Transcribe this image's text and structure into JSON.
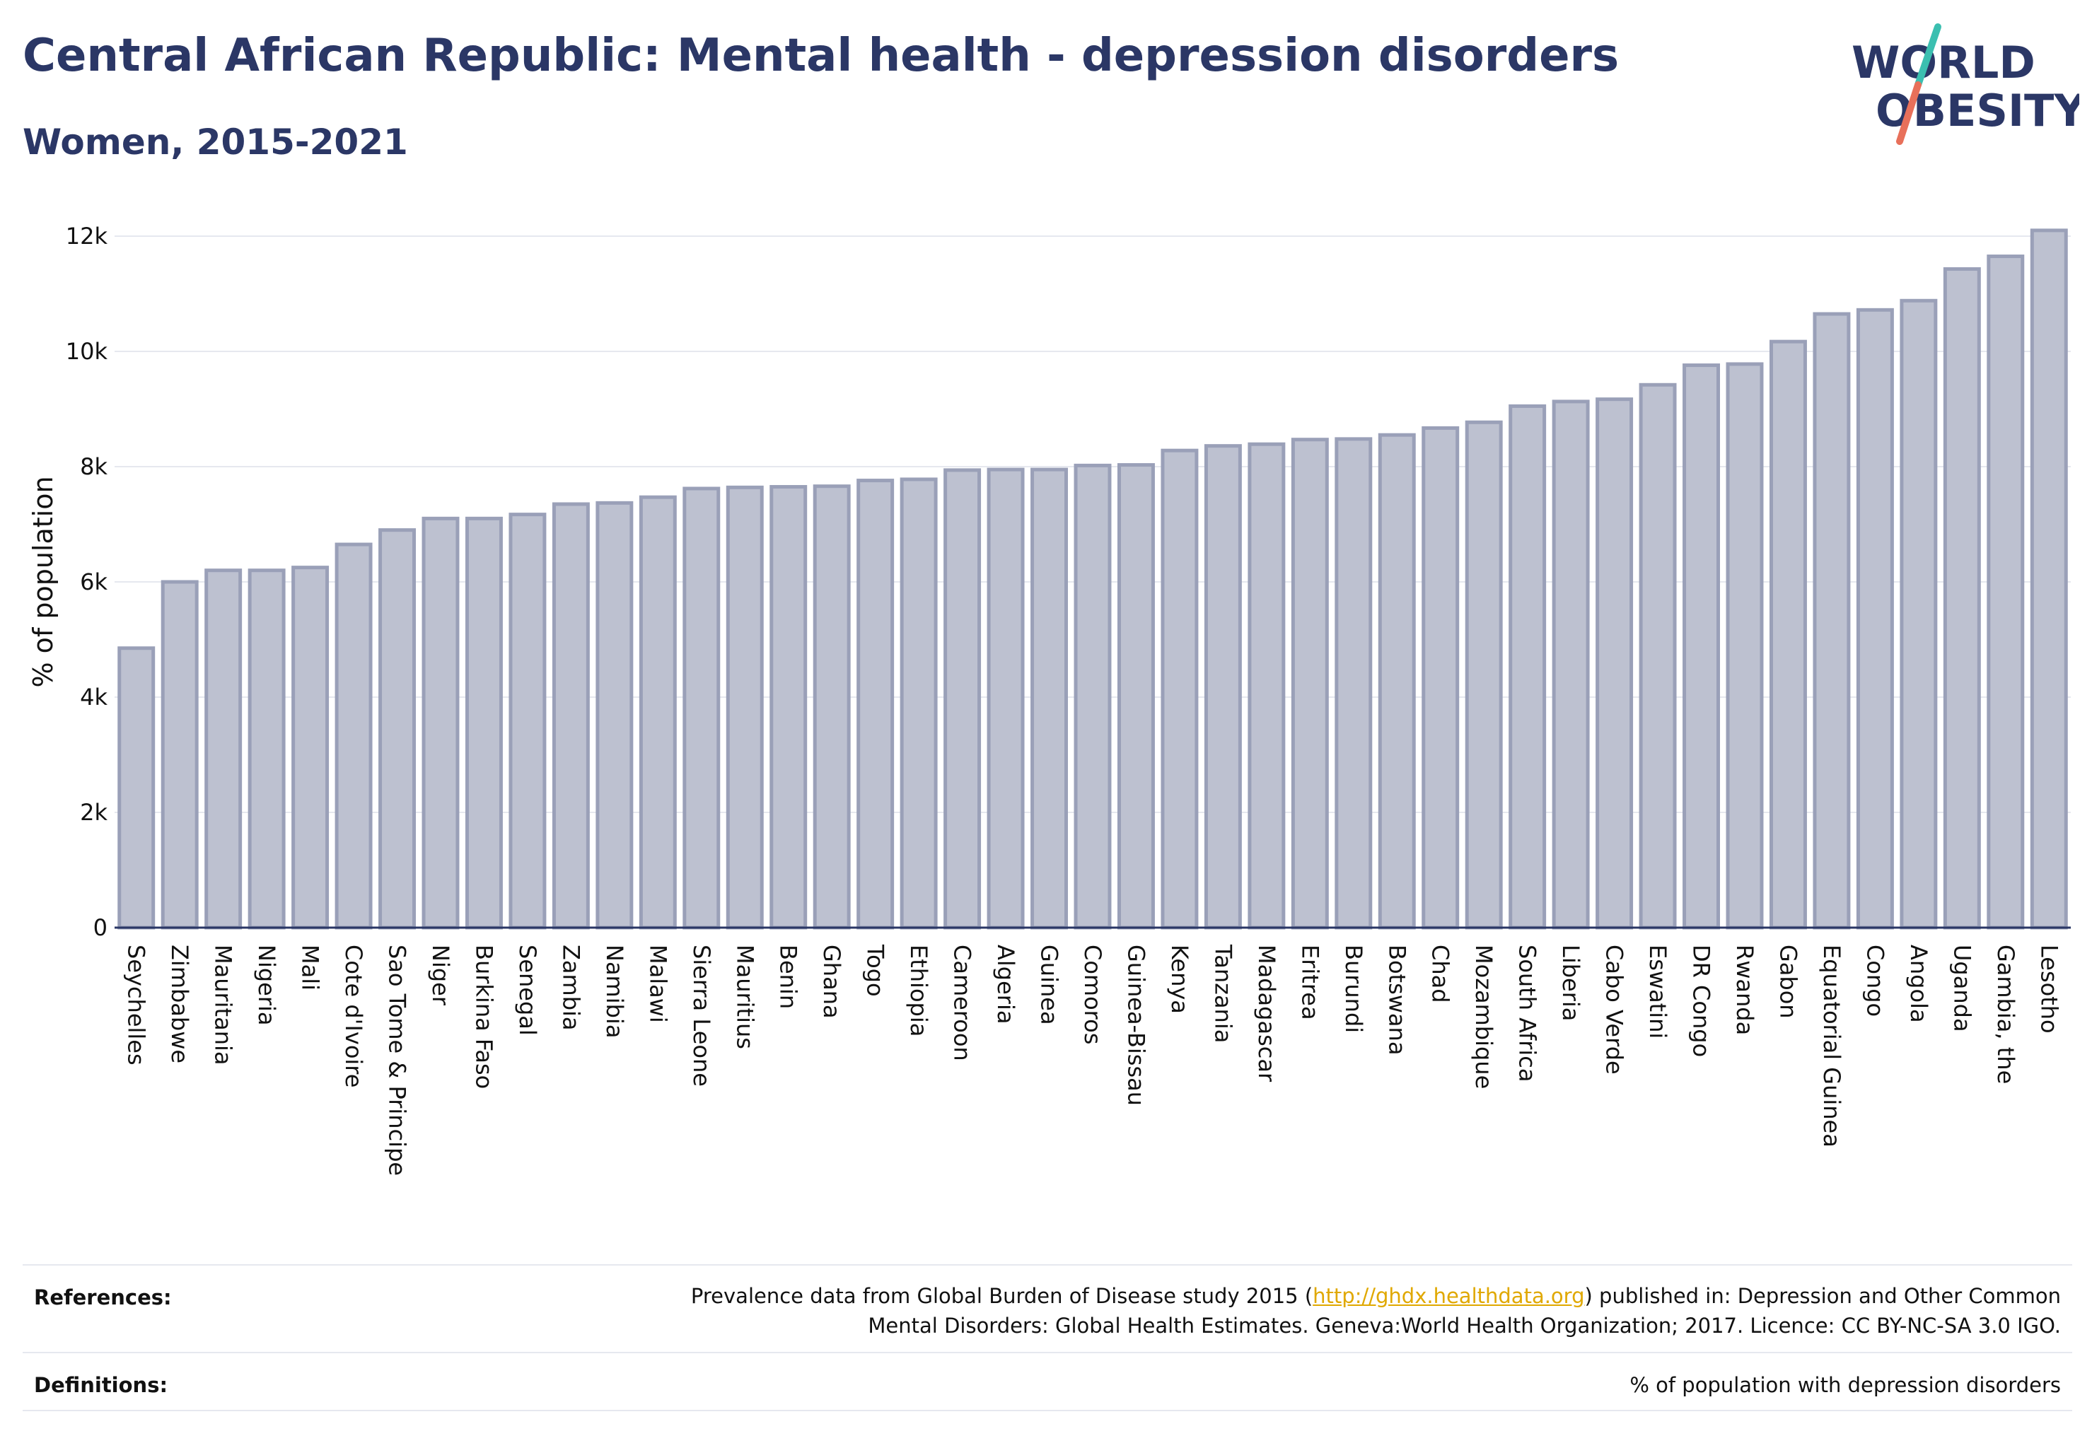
{
  "header": {
    "title": "Central African Republic: Mental health - depression disorders",
    "subtitle": "Women, 2015-2021"
  },
  "logo": {
    "line1": "WORLD",
    "line2": "OBESITY"
  },
  "colors": {
    "title": "#2b3766",
    "bar_fill": "#bdc1d0",
    "bar_stroke": "#9aa0b8",
    "grid": "#e6e8ef",
    "link": "#e0a800",
    "logo_teal": "#3bbfb0",
    "logo_coral": "#e8705a"
  },
  "chart_data": {
    "type": "bar",
    "ylabel": "% of population",
    "xlabel": "",
    "ylim": [
      0,
      12000
    ],
    "yticks": [
      0,
      2000,
      4000,
      6000,
      8000,
      10000,
      12000
    ],
    "ytick_labels": [
      "0",
      "2k",
      "4k",
      "6k",
      "8k",
      "10k",
      "12k"
    ],
    "grid": true,
    "categories": [
      "Seychelles",
      "Zimbabwe",
      "Mauritania",
      "Nigeria",
      "Mali",
      "Cote d'Ivoire",
      "Sao Tome & Principe",
      "Niger",
      "Burkina Faso",
      "Senegal",
      "Zambia",
      "Namibia",
      "Malawi",
      "Sierra Leone",
      "Mauritius",
      "Benin",
      "Ghana",
      "Togo",
      "Ethiopia",
      "Cameroon",
      "Algeria",
      "Guinea",
      "Comoros",
      "Guinea-Bissau",
      "Kenya",
      "Tanzania",
      "Madagascar",
      "Eritrea",
      "Burundi",
      "Botswana",
      "Chad",
      "Mozambique",
      "South Africa",
      "Liberia",
      "Cabo Verde",
      "Eswatini",
      "DR Congo",
      "Rwanda",
      "Gabon",
      "Equatorial Guinea",
      "Congo",
      "Angola",
      "Uganda",
      "Gambia, the",
      "Lesotho"
    ],
    "values": [
      4850,
      6000,
      6200,
      6200,
      6250,
      6650,
      6900,
      7100,
      7100,
      7170,
      7350,
      7370,
      7470,
      7620,
      7640,
      7650,
      7660,
      7760,
      7780,
      7940,
      7950,
      7950,
      8020,
      8030,
      8280,
      8360,
      8390,
      8470,
      8480,
      8550,
      8670,
      8770,
      9050,
      9130,
      9170,
      9420,
      9760,
      9780,
      10170,
      10650,
      10720,
      10880,
      11430,
      11650,
      12100
    ]
  },
  "footer": {
    "references_label": "References:",
    "references_text_1": "Prevalence data from Global Burden of Disease study 2015 (",
    "references_link": "http://ghdx.healthdata.org",
    "references_text_2": ") published in: Depression and Other Common",
    "references_text_3": "Mental Disorders: Global Health Estimates. Geneva:World Health Organization; 2017. Licence: CC BY-NC-SA 3.0 IGO.",
    "definitions_label": "Definitions:",
    "definitions_text": "% of population with depression disorders"
  }
}
